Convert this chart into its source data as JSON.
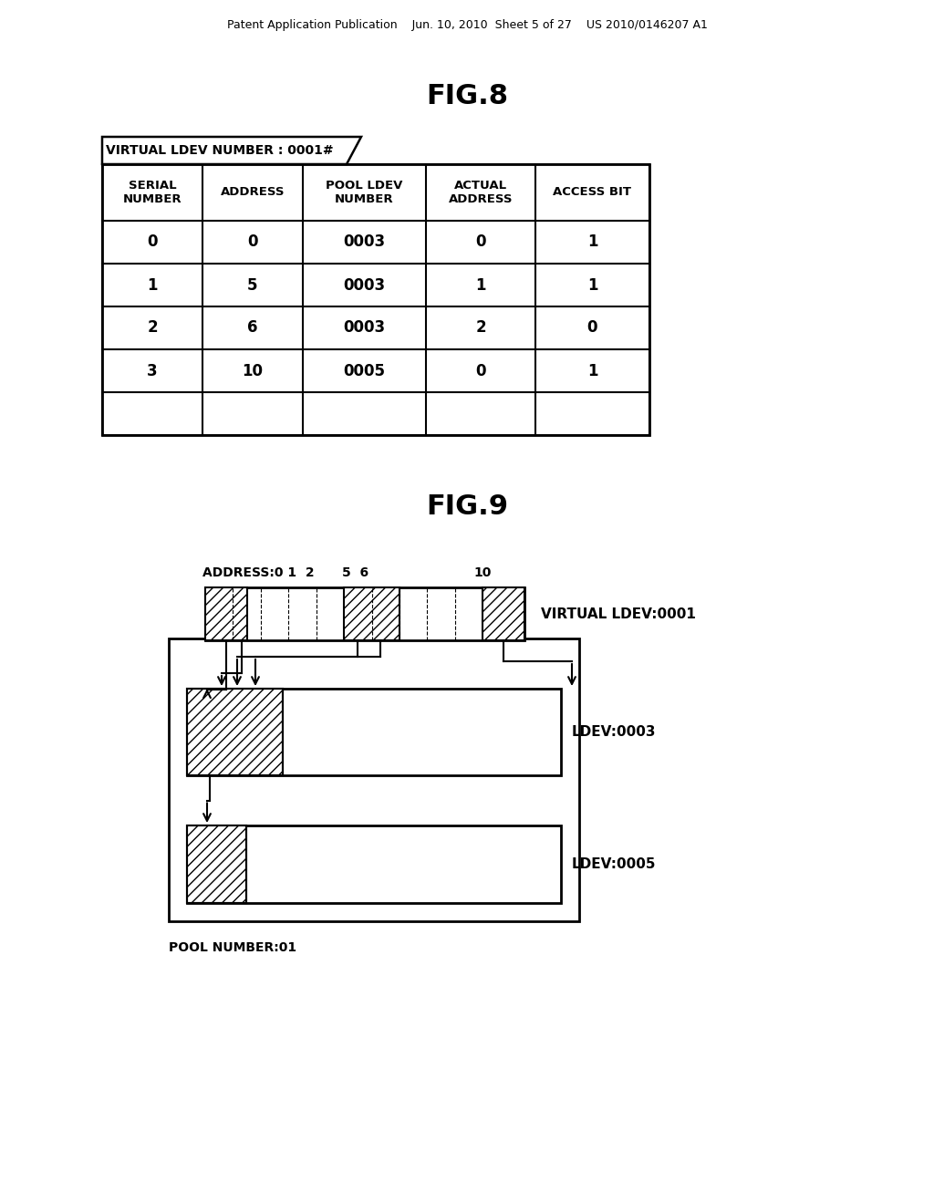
{
  "header_text": "Patent Application Publication    Jun. 10, 2010  Sheet 5 of 27    US 2010/0146207 A1",
  "fig8_title": "FIG.8",
  "fig9_title": "FIG.9",
  "table_label": "VIRTUAL LDEV NUMBER : 0001#",
  "col_headers": [
    "SERIAL\nNUMBER",
    "ADDRESS",
    "POOL LDEV\nNUMBER",
    "ACTUAL\nADDRESS",
    "ACCESS BIT"
  ],
  "table_data": [
    [
      "0",
      "0",
      "0003",
      "0",
      "1"
    ],
    [
      "1",
      "5",
      "0003",
      "1",
      "1"
    ],
    [
      "2",
      "6",
      "0003",
      "2",
      "0"
    ],
    [
      "3",
      "10",
      "0005",
      "0",
      "1"
    ],
    [
      "",
      "",
      "",
      "",
      ""
    ]
  ],
  "bg_color": "#ffffff",
  "text_color": "#000000"
}
